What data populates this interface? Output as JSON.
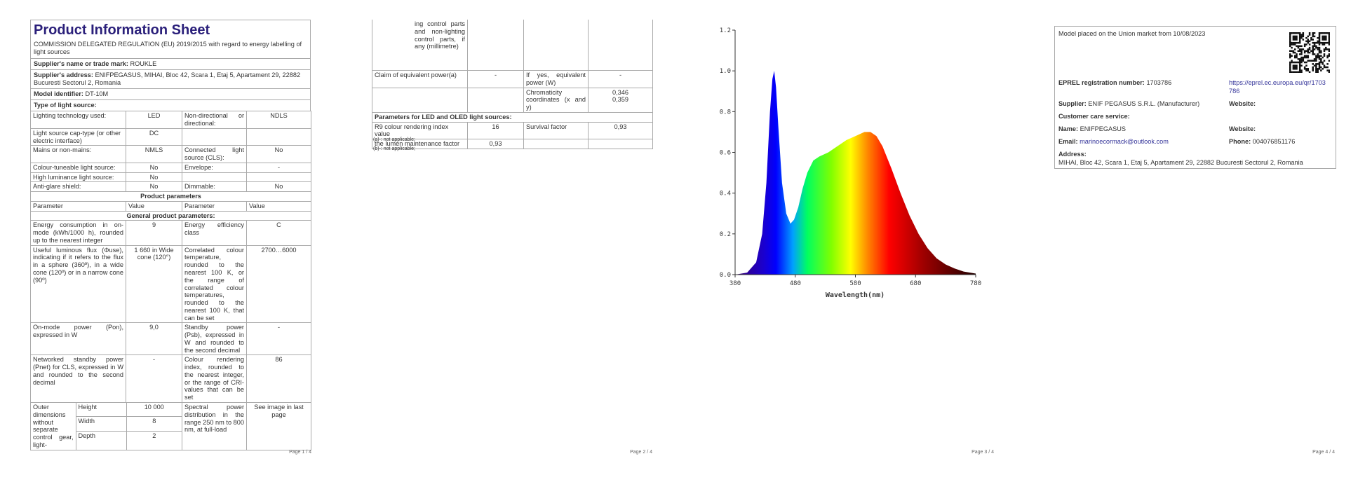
{
  "page1": {
    "title": "Product Information Sheet",
    "regulation": "COMMISSION DELEGATED REGULATION (EU) 2019/2015 with regard to energy labelling of light sources",
    "supplier": {
      "label": "Supplier's name or trade mark:",
      "value": "ROUKLE"
    },
    "address": {
      "label": "Supplier's address:",
      "value": "ENIFPEGASUS, MIHAI, Bloc 42, Scara 1, Etaj 5, Apartament 29, 22882 Bucuresti Sectorul 2, Romania"
    },
    "model": {
      "label": "Model identifier:",
      "value": "DT-10M"
    },
    "type_heading": "Type of light source:",
    "type_rows": [
      [
        "Lighting technology used:",
        "LED",
        "Non-directional or directional:",
        "NDLS"
      ],
      [
        "Light source cap-type (or other electric interface)",
        "DC"
      ],
      [
        "Mains or non-mains:",
        "NMLS",
        "Connected light source (CLS):",
        "No"
      ],
      [
        "Colour-tuneable light source:",
        "No",
        "Envelope:",
        "-"
      ],
      [
        "High luminance light source:",
        "No"
      ],
      [
        "Anti-glare shield:",
        "No",
        "Dimmable:",
        "No"
      ]
    ],
    "product_heading": "Product parameters",
    "header": [
      "Parameter",
      "Value",
      "Parameter",
      "Value"
    ],
    "general_heading": "General product parameters:",
    "param_rows": [
      [
        "Energy consumption in on-mode (kWh/1000 h), rounded up to the nearest integer",
        "9",
        "Energy efficiency class",
        "C"
      ],
      [
        "Useful luminous flux (Φuse), indicating if it refers to the flux in a sphere (360º), in a wide cone (120º) or in a narrow cone (90º)",
        "1 660 in Wide cone (120°)",
        "Correlated colour temperature, rounded to the nearest 100 K, or the range of correlated colour temperatures, rounded to the nearest 100 K, that can be set",
        "2700…6000"
      ],
      [
        "On-mode power (Pon), expressed in W",
        "9,0",
        "Standby power (Psb), expressed in W and rounded to the second decimal",
        "-"
      ],
      [
        "Networked standby power (Pnet) for CLS, expressed in W and rounded to the second decimal",
        "-",
        "Colour rendering index, rounded to the nearest integer, or the range of CRI-values that can be set",
        "86"
      ]
    ],
    "dimensions": {
      "label": "Outer dimensions without separate control gear, light-",
      "rows": [
        [
          "Height",
          "10 000"
        ],
        [
          "Width",
          "8"
        ],
        [
          "Depth",
          "2"
        ]
      ],
      "spd_label": "Spectral power distribution in the range 250 nm to 800 nm, at full-load",
      "spd_value": "See image in last page"
    },
    "page": "Page 1 / 4"
  },
  "page2": {
    "continuation": "ing control parts and non-lighting control parts, if any (millimetre)",
    "claim": [
      "Claim of equivalent power(a)",
      "-",
      "If yes, equivalent power (W)",
      "-"
    ],
    "chromaticity": {
      "label": "Chromaticity coordinates (x and y)",
      "x": "0,346",
      "y": "0,359"
    },
    "led_heading": "Parameters for LED and OLED light sources:",
    "led_rows": [
      [
        "R9 colour rendering index value",
        "16",
        "Survival factor",
        "0,93"
      ],
      [
        "the lumen maintenance factor",
        "0,93"
      ]
    ],
    "notes": [
      "(a)-: not applicable;",
      "(b)-: not applicable;"
    ],
    "page": "Page 2 / 4"
  },
  "page3": {
    "spectrum": {
      "xlabel": "Wavelength(nm)",
      "xlim": [
        380,
        780
      ],
      "ylim": [
        0,
        1.2
      ],
      "xticks": [
        380,
        480,
        580,
        680,
        780
      ],
      "yticks": [
        {
          "value": 0,
          "label": "0.0"
        },
        0.2,
        0.4,
        0.6,
        0.8,
        {
          "value": 1,
          "label": "1.0"
        },
        1.2
      ],
      "x": [
        380,
        400,
        415,
        425,
        432,
        438,
        442,
        445,
        448,
        452,
        458,
        465,
        472,
        478,
        485,
        492,
        500,
        510,
        520,
        535,
        550,
        565,
        580,
        595,
        605,
        615,
        625,
        640,
        655,
        670,
        685,
        700,
        715,
        730,
        745,
        760,
        780
      ],
      "y": [
        0,
        0.01,
        0.06,
        0.2,
        0.45,
        0.8,
        0.96,
        1.0,
        0.92,
        0.72,
        0.45,
        0.3,
        0.25,
        0.27,
        0.33,
        0.42,
        0.5,
        0.56,
        0.58,
        0.6,
        0.63,
        0.66,
        0.68,
        0.7,
        0.7,
        0.68,
        0.63,
        0.52,
        0.4,
        0.29,
        0.2,
        0.13,
        0.08,
        0.05,
        0.03,
        0.015,
        0.005
      ]
    },
    "page": "Page 3 / 4"
  },
  "page4": {
    "placed": "Model placed on the Union market from 10/08/2023",
    "eprel": {
      "label": "EPREL registration number:",
      "value": "1703786"
    },
    "link": "https://eprel.ec.europa.eu/qr/1703786",
    "supplier": {
      "label": "Supplier:",
      "value": "ENIF PEGASUS S.R.L. (Manufacturer)"
    },
    "website1": "Website:",
    "care": "Customer care service:",
    "name": {
      "label": "Name:",
      "value": "ENIFPEGASUS"
    },
    "website2": "Website:",
    "email": {
      "label": "Email:",
      "value": "marinoecormack@outlook.com"
    },
    "phone": {
      "label": "Phone:",
      "value": "004076851176"
    },
    "address": {
      "label": "Address:",
      "value": "MIHAI, Bloc 42, Scara 1, Etaj 5, Apartament 29, 22882 Bucuresti Sectorul 2, Romania"
    },
    "page": "Page 4 / 4"
  }
}
